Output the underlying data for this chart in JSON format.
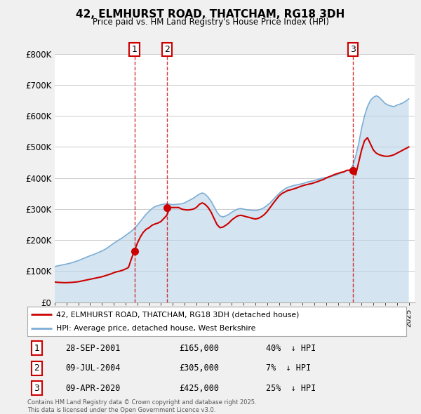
{
  "title": "42, ELMHURST ROAD, THATCHAM, RG18 3DH",
  "subtitle": "Price paid vs. HM Land Registry's House Price Index (HPI)",
  "ylim": [
    0,
    800000
  ],
  "yticks": [
    0,
    100000,
    200000,
    300000,
    400000,
    500000,
    600000,
    700000,
    800000
  ],
  "ytick_labels": [
    "£0",
    "£100K",
    "£200K",
    "£300K",
    "£400K",
    "£500K",
    "£600K",
    "£700K",
    "£800K"
  ],
  "xlim_start": 1995.0,
  "xlim_end": 2025.5,
  "bg_color": "#f0f0f0",
  "plot_bg_color": "#ffffff",
  "red_line_color": "#cc0000",
  "blue_line_color": "#7dadd4",
  "blue_fill_color": "#b8d4e8",
  "sale_marker_color": "#cc0000",
  "dashed_line_color": "#cc0000",
  "legend_label_red": "42, ELMHURST ROAD, THATCHAM, RG18 3DH (detached house)",
  "legend_label_blue": "HPI: Average price, detached house, West Berkshire",
  "sales": [
    {
      "num": 1,
      "year": 2001.75,
      "price": 165000,
      "date": "28-SEP-2001",
      "pct": "40%",
      "dir": "↓"
    },
    {
      "num": 2,
      "year": 2004.52,
      "price": 305000,
      "date": "09-JUL-2004",
      "pct": "7%",
      "dir": "↓"
    },
    {
      "num": 3,
      "year": 2020.27,
      "price": 425000,
      "date": "09-APR-2020",
      "pct": "25%",
      "dir": "↓"
    }
  ],
  "footer": "Contains HM Land Registry data © Crown copyright and database right 2025.\nThis data is licensed under the Open Government Licence v3.0.",
  "hpi_years": [
    1995.0,
    1995.25,
    1995.5,
    1995.75,
    1996.0,
    1996.25,
    1996.5,
    1996.75,
    1997.0,
    1997.25,
    1997.5,
    1997.75,
    1998.0,
    1998.25,
    1998.5,
    1998.75,
    1999.0,
    1999.25,
    1999.5,
    1999.75,
    2000.0,
    2000.25,
    2000.5,
    2000.75,
    2001.0,
    2001.25,
    2001.5,
    2001.75,
    2002.0,
    2002.25,
    2002.5,
    2002.75,
    2003.0,
    2003.25,
    2003.5,
    2003.75,
    2004.0,
    2004.25,
    2004.5,
    2004.75,
    2005.0,
    2005.25,
    2005.5,
    2005.75,
    2006.0,
    2006.25,
    2006.5,
    2006.75,
    2007.0,
    2007.25,
    2007.5,
    2007.75,
    2008.0,
    2008.25,
    2008.5,
    2008.75,
    2009.0,
    2009.25,
    2009.5,
    2009.75,
    2010.0,
    2010.25,
    2010.5,
    2010.75,
    2011.0,
    2011.25,
    2011.5,
    2011.75,
    2012.0,
    2012.25,
    2012.5,
    2012.75,
    2013.0,
    2013.25,
    2013.5,
    2013.75,
    2014.0,
    2014.25,
    2014.5,
    2014.75,
    2015.0,
    2015.25,
    2015.5,
    2015.75,
    2016.0,
    2016.25,
    2016.5,
    2016.75,
    2017.0,
    2017.25,
    2017.5,
    2017.75,
    2018.0,
    2018.25,
    2018.5,
    2018.75,
    2019.0,
    2019.25,
    2019.5,
    2019.75,
    2020.0,
    2020.25,
    2020.5,
    2020.75,
    2021.0,
    2021.25,
    2021.5,
    2021.75,
    2022.0,
    2022.25,
    2022.5,
    2022.75,
    2023.0,
    2023.25,
    2023.5,
    2023.75,
    2024.0,
    2024.25,
    2024.5,
    2024.75,
    2025.0
  ],
  "hpi_values": [
    115000,
    117000,
    119000,
    121000,
    123000,
    125000,
    128000,
    131000,
    134000,
    138000,
    142000,
    146000,
    150000,
    153000,
    157000,
    161000,
    165000,
    170000,
    176000,
    183000,
    190000,
    196000,
    202000,
    208000,
    215000,
    222000,
    229000,
    238000,
    248000,
    260000,
    272000,
    284000,
    293000,
    302000,
    308000,
    311000,
    314000,
    316000,
    318000,
    316000,
    314000,
    315000,
    316000,
    317000,
    320000,
    325000,
    330000,
    335000,
    342000,
    348000,
    352000,
    348000,
    338000,
    325000,
    308000,
    290000,
    278000,
    275000,
    278000,
    283000,
    290000,
    295000,
    300000,
    302000,
    300000,
    298000,
    297000,
    296000,
    295000,
    297000,
    300000,
    305000,
    312000,
    320000,
    330000,
    340000,
    350000,
    358000,
    365000,
    370000,
    373000,
    376000,
    378000,
    380000,
    382000,
    385000,
    388000,
    390000,
    392000,
    395000,
    398000,
    400000,
    402000,
    404000,
    406000,
    408000,
    412000,
    416000,
    420000,
    424000,
    425000,
    440000,
    470000,
    510000,
    560000,
    600000,
    630000,
    650000,
    660000,
    665000,
    660000,
    650000,
    640000,
    635000,
    632000,
    630000,
    635000,
    638000,
    642000,
    648000,
    655000
  ],
  "red_years": [
    1995.0,
    1995.25,
    1995.5,
    1995.75,
    1996.0,
    1996.25,
    1996.5,
    1996.75,
    1997.0,
    1997.25,
    1997.5,
    1997.75,
    1998.0,
    1998.25,
    1998.5,
    1998.75,
    1999.0,
    1999.25,
    1999.5,
    1999.75,
    2000.0,
    2000.25,
    2000.5,
    2000.75,
    2001.0,
    2001.25,
    2001.5,
    2001.75,
    2002.0,
    2002.25,
    2002.5,
    2002.75,
    2003.0,
    2003.25,
    2003.5,
    2003.75,
    2004.0,
    2004.25,
    2004.5,
    2004.75,
    2005.0,
    2005.25,
    2005.5,
    2005.75,
    2006.0,
    2006.25,
    2006.5,
    2006.75,
    2007.0,
    2007.25,
    2007.5,
    2007.75,
    2008.0,
    2008.25,
    2008.5,
    2008.75,
    2009.0,
    2009.25,
    2009.5,
    2009.75,
    2010.0,
    2010.25,
    2010.5,
    2010.75,
    2011.0,
    2011.25,
    2011.5,
    2011.75,
    2012.0,
    2012.25,
    2012.5,
    2012.75,
    2013.0,
    2013.25,
    2013.5,
    2013.75,
    2014.0,
    2014.25,
    2014.5,
    2014.75,
    2015.0,
    2015.25,
    2015.5,
    2015.75,
    2016.0,
    2016.25,
    2016.5,
    2016.75,
    2017.0,
    2017.25,
    2017.5,
    2017.75,
    2018.0,
    2018.25,
    2018.5,
    2018.75,
    2019.0,
    2019.25,
    2019.5,
    2019.75,
    2020.0,
    2020.25,
    2020.5,
    2020.75,
    2021.0,
    2021.25,
    2021.5,
    2021.75,
    2022.0,
    2022.25,
    2022.5,
    2022.75,
    2023.0,
    2023.25,
    2023.5,
    2023.75,
    2024.0,
    2024.25,
    2024.5,
    2024.75,
    2025.0
  ],
  "red_values": [
    65000,
    64000,
    63500,
    63000,
    63000,
    63500,
    64000,
    65000,
    66000,
    68000,
    70000,
    72000,
    74000,
    76000,
    78000,
    80000,
    82000,
    85000,
    88000,
    91000,
    95000,
    98000,
    100000,
    103000,
    107000,
    112000,
    140000,
    165000,
    190000,
    210000,
    225000,
    235000,
    240000,
    248000,
    252000,
    255000,
    260000,
    270000,
    280000,
    305000,
    305000,
    305000,
    305000,
    300000,
    298000,
    297000,
    298000,
    300000,
    305000,
    315000,
    320000,
    315000,
    305000,
    290000,
    270000,
    250000,
    240000,
    242000,
    248000,
    255000,
    265000,
    272000,
    278000,
    280000,
    278000,
    275000,
    273000,
    270000,
    268000,
    270000,
    275000,
    282000,
    292000,
    305000,
    318000,
    330000,
    342000,
    350000,
    355000,
    360000,
    362000,
    365000,
    368000,
    372000,
    375000,
    378000,
    380000,
    382000,
    385000,
    388000,
    392000,
    395000,
    400000,
    404000,
    408000,
    412000,
    415000,
    418000,
    420000,
    425000,
    425000,
    415000,
    410000,
    450000,
    490000,
    520000,
    530000,
    510000,
    490000,
    480000,
    475000,
    472000,
    470000,
    470000,
    472000,
    475000,
    480000,
    485000,
    490000,
    495000,
    500000
  ]
}
